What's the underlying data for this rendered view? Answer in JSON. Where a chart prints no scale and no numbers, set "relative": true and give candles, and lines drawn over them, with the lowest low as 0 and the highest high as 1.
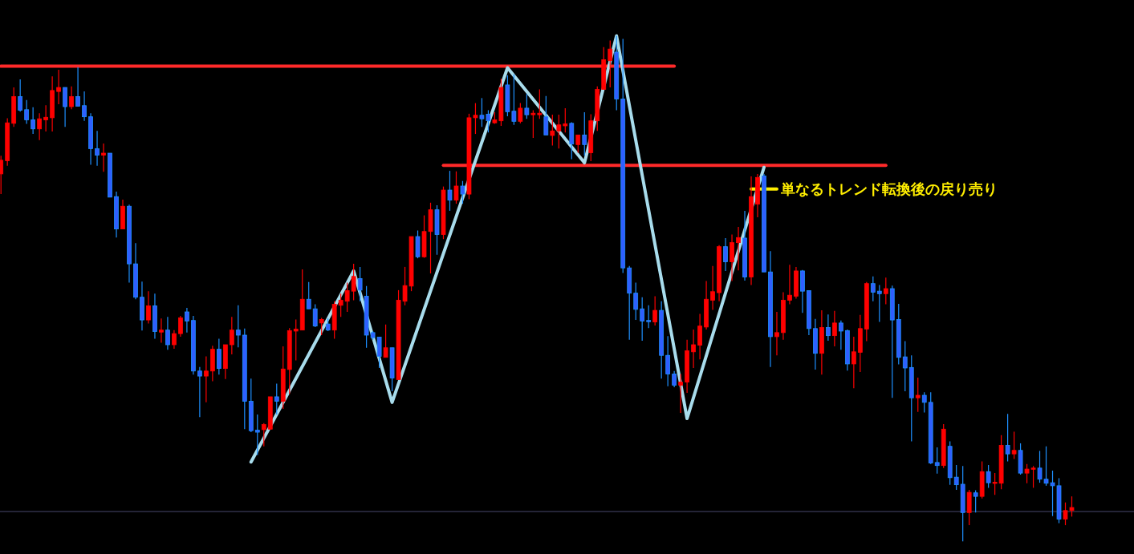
{
  "chart_data": {
    "type": "candlestick",
    "relative": true,
    "grid": false,
    "marker": "none",
    "categories": [
      null,
      null,
      null,
      null,
      null,
      null,
      null,
      null,
      null,
      null,
      null,
      null,
      null,
      null,
      null,
      null,
      null,
      null,
      null,
      null,
      null,
      null,
      null,
      null,
      null,
      null,
      null,
      null,
      null,
      null,
      null,
      null,
      null,
      null,
      null,
      null,
      null,
      null,
      null,
      null,
      null,
      null,
      null,
      null,
      null,
      null,
      null,
      null,
      null,
      null,
      null,
      null,
      null,
      null,
      null,
      null,
      null,
      null,
      null,
      null,
      null,
      null,
      null,
      null,
      null,
      null,
      null,
      null,
      null,
      null,
      null,
      null,
      null,
      null,
      null,
      null,
      null,
      null,
      null,
      null,
      null,
      null,
      null,
      null,
      null,
      null,
      null,
      null,
      null,
      null,
      null,
      null,
      null,
      null,
      null,
      null,
      null,
      null,
      null,
      null,
      null,
      null,
      null,
      null,
      null,
      null,
      null,
      null,
      null,
      null,
      null,
      null,
      null,
      null,
      null,
      null,
      null,
      null,
      null,
      null,
      null,
      null,
      null,
      null,
      null,
      null,
      null,
      null,
      null,
      null,
      null,
      null,
      null,
      null,
      null,
      null,
      null,
      null,
      null,
      null,
      null,
      null,
      null,
      null,
      null,
      null,
      null,
      null,
      null,
      null,
      null,
      null,
      null,
      null,
      null,
      null,
      null,
      null,
      null,
      null,
      null,
      null,
      null,
      null,
      null,
      null,
      null,
      null
    ],
    "ohlc": [
      [
        0.727,
        0.763,
        0.687,
        0.754
      ],
      [
        0.753,
        0.837,
        0.743,
        0.828
      ],
      [
        0.827,
        0.898,
        0.82,
        0.88
      ],
      [
        0.88,
        0.914,
        0.85,
        0.853
      ],
      [
        0.854,
        0.873,
        0.826,
        0.834
      ],
      [
        0.834,
        0.859,
        0.806,
        0.816
      ],
      [
        0.816,
        0.847,
        0.794,
        0.836
      ],
      [
        0.834,
        0.863,
        0.811,
        0.839
      ],
      [
        0.838,
        0.92,
        0.811,
        0.892
      ],
      [
        0.89,
        0.933,
        0.865,
        0.898
      ],
      [
        0.898,
        0.898,
        0.82,
        0.86
      ],
      [
        0.86,
        0.9,
        0.855,
        0.88
      ],
      [
        0.88,
        0.938,
        0.861,
        0.861
      ],
      [
        0.862,
        0.89,
        0.832,
        0.84
      ],
      [
        0.84,
        0.847,
        0.745,
        0.777
      ],
      [
        0.777,
        0.812,
        0.743,
        0.764
      ],
      [
        0.764,
        0.787,
        0.731,
        0.768
      ],
      [
        0.768,
        0.768,
        0.681,
        0.681
      ],
      [
        0.682,
        0.692,
        0.601,
        0.618
      ],
      [
        0.618,
        0.676,
        0.618,
        0.663
      ],
      [
        0.663,
        0.666,
        0.512,
        0.549
      ],
      [
        0.549,
        0.59,
        0.479,
        0.483
      ],
      [
        0.483,
        0.514,
        0.417,
        0.438
      ],
      [
        0.438,
        0.495,
        0.431,
        0.466
      ],
      [
        0.466,
        0.49,
        0.401,
        0.415
      ],
      [
        0.414,
        0.441,
        0.393,
        0.418
      ],
      [
        0.418,
        0.444,
        0.379,
        0.389
      ],
      [
        0.389,
        0.418,
        0.381,
        0.411
      ],
      [
        0.411,
        0.446,
        0.405,
        0.442
      ],
      [
        0.454,
        0.462,
        0.413,
        0.436
      ],
      [
        0.437,
        0.446,
        0.33,
        0.337
      ],
      [
        0.337,
        0.345,
        0.246,
        0.327
      ],
      [
        0.327,
        0.366,
        0.275,
        0.337
      ],
      [
        0.337,
        0.387,
        0.317,
        0.38
      ],
      [
        0.38,
        0.401,
        0.33,
        0.342
      ],
      [
        0.342,
        0.389,
        0.321,
        0.389
      ],
      [
        0.389,
        0.444,
        0.37,
        0.418
      ],
      [
        0.418,
        0.467,
        0.384,
        0.408
      ],
      [
        0.408,
        0.421,
        0.222,
        0.277
      ],
      [
        0.277,
        0.322,
        0.216,
        0.219
      ],
      [
        0.22,
        0.251,
        0.171,
        0.216
      ],
      [
        0.221,
        0.234,
        0.188,
        0.231
      ],
      [
        0.222,
        0.286,
        0.221,
        0.286
      ],
      [
        0.286,
        0.312,
        0.251,
        0.277
      ],
      [
        0.277,
        0.386,
        0.262,
        0.341
      ],
      [
        0.34,
        0.422,
        0.292,
        0.417
      ],
      [
        0.416,
        0.439,
        0.358,
        0.42
      ],
      [
        0.418,
        0.538,
        0.418,
        0.479
      ],
      [
        0.479,
        0.513,
        0.46,
        0.46
      ],
      [
        0.46,
        0.469,
        0.424,
        0.426
      ],
      [
        0.432,
        0.442,
        0.408,
        0.439
      ],
      [
        0.43,
        0.441,
        0.416,
        0.418
      ],
      [
        0.418,
        0.475,
        0.401,
        0.469
      ],
      [
        0.467,
        0.49,
        0.444,
        0.477
      ],
      [
        0.475,
        0.512,
        0.454,
        0.496
      ],
      [
        0.495,
        0.549,
        0.477,
        0.524
      ],
      [
        0.52,
        0.543,
        0.475,
        0.497
      ],
      [
        0.485,
        0.505,
        0.383,
        0.408
      ],
      [
        0.413,
        0.416,
        0.399,
        0.403
      ],
      [
        0.404,
        0.404,
        0.343,
        0.366
      ],
      [
        0.364,
        0.429,
        0.364,
        0.383
      ],
      [
        0.383,
        0.383,
        0.297,
        0.323
      ],
      [
        0.32,
        0.497,
        0.32,
        0.477
      ],
      [
        0.475,
        0.543,
        0.467,
        0.506
      ],
      [
        0.505,
        0.603,
        0.495,
        0.603
      ],
      [
        0.603,
        0.615,
        0.56,
        0.563
      ],
      [
        0.563,
        0.645,
        0.561,
        0.613
      ],
      [
        0.613,
        0.67,
        0.53,
        0.656
      ],
      [
        0.656,
        0.665,
        0.567,
        0.607
      ],
      [
        0.607,
        0.702,
        0.598,
        0.695
      ],
      [
        0.695,
        0.733,
        0.654,
        0.675
      ],
      [
        0.675,
        0.732,
        0.668,
        0.703
      ],
      [
        0.703,
        0.713,
        0.668,
        0.687
      ],
      [
        0.687,
        0.846,
        0.677,
        0.838
      ],
      [
        0.838,
        0.867,
        0.806,
        0.843
      ],
      [
        0.843,
        0.877,
        0.82,
        0.836
      ],
      [
        0.845,
        0.853,
        0.809,
        0.832
      ],
      [
        0.828,
        0.849,
        0.826,
        0.834
      ],
      [
        0.832,
        0.915,
        0.822,
        0.898
      ],
      [
        0.903,
        0.922,
        0.841,
        0.85
      ],
      [
        0.851,
        0.924,
        0.824,
        0.831
      ],
      [
        0.831,
        0.867,
        0.827,
        0.857
      ],
      [
        0.857,
        0.885,
        0.836,
        0.844
      ],
      [
        0.844,
        0.853,
        0.798,
        0.847
      ],
      [
        0.844,
        0.894,
        0.836,
        0.847
      ],
      [
        0.84,
        0.881,
        0.804,
        0.804
      ],
      [
        0.803,
        0.844,
        0.783,
        0.812
      ],
      [
        0.812,
        0.844,
        0.777,
        0.824
      ],
      [
        0.822,
        0.857,
        0.809,
        0.826
      ],
      [
        0.827,
        0.829,
        0.756,
        0.786
      ],
      [
        0.785,
        0.804,
        0.769,
        0.804
      ],
      [
        0.804,
        0.849,
        0.763,
        0.785
      ],
      [
        0.769,
        0.845,
        0.752,
        0.832
      ],
      [
        0.832,
        0.9,
        0.812,
        0.894
      ],
      [
        0.894,
        0.978,
        0.894,
        0.953
      ],
      [
        0.951,
        0.991,
        0.898,
        0.974
      ],
      [
        0.968,
        1.0,
        0.853,
        0.875
      ],
      [
        0.875,
        0.994,
        0.531,
        0.541
      ],
      [
        0.541,
        0.545,
        0.399,
        0.491
      ],
      [
        0.491,
        0.512,
        0.438,
        0.459
      ],
      [
        0.46,
        0.483,
        0.397,
        0.436
      ],
      [
        0.437,
        0.467,
        0.422,
        0.436
      ],
      [
        0.434,
        0.485,
        0.427,
        0.457
      ],
      [
        0.457,
        0.475,
        0.322,
        0.368
      ],
      [
        0.368,
        0.406,
        0.307,
        0.331
      ],
      [
        0.331,
        0.337,
        0.305,
        0.309
      ],
      [
        0.309,
        0.331,
        0.254,
        0.315
      ],
      [
        0.315,
        0.399,
        0.294,
        0.377
      ],
      [
        0.375,
        0.419,
        0.343,
        0.389
      ],
      [
        0.388,
        0.45,
        0.36,
        0.426
      ],
      [
        0.424,
        0.515,
        0.419,
        0.479
      ],
      [
        0.477,
        0.545,
        0.458,
        0.494
      ],
      [
        0.492,
        0.586,
        0.475,
        0.583
      ],
      [
        0.583,
        0.6,
        0.535,
        0.553
      ],
      [
        0.553,
        0.607,
        0.515,
        0.591
      ],
      [
        0.591,
        0.622,
        0.536,
        0.601
      ],
      [
        0.6,
        0.654,
        0.516,
        0.523
      ],
      [
        0.523,
        0.722,
        0.507,
        0.682
      ],
      [
        0.667,
        0.727,
        0.641,
        0.72
      ],
      [
        0.723,
        0.727,
        0.533,
        0.533
      ],
      [
        0.533,
        0.574,
        0.345,
        0.405
      ],
      [
        0.405,
        0.454,
        0.368,
        0.413
      ],
      [
        0.413,
        0.493,
        0.399,
        0.477
      ],
      [
        0.477,
        0.547,
        0.469,
        0.487
      ],
      [
        0.485,
        0.543,
        0.48,
        0.535
      ],
      [
        0.535,
        0.537,
        0.452,
        0.495
      ],
      [
        0.496,
        0.496,
        0.408,
        0.421
      ],
      [
        0.421,
        0.44,
        0.34,
        0.372
      ],
      [
        0.372,
        0.457,
        0.33,
        0.423
      ],
      [
        0.423,
        0.449,
        0.397,
        0.407
      ],
      [
        0.407,
        0.456,
        0.386,
        0.432
      ],
      [
        0.432,
        0.437,
        0.379,
        0.416
      ],
      [
        0.417,
        0.419,
        0.338,
        0.351
      ],
      [
        0.351,
        0.405,
        0.303,
        0.375
      ],
      [
        0.374,
        0.448,
        0.335,
        0.421
      ],
      [
        0.42,
        0.513,
        0.396,
        0.51
      ],
      [
        0.51,
        0.524,
        0.475,
        0.493
      ],
      [
        0.495,
        0.507,
        0.434,
        0.49
      ],
      [
        0.49,
        0.522,
        0.469,
        0.5
      ],
      [
        0.5,
        0.506,
        0.284,
        0.438
      ],
      [
        0.439,
        0.47,
        0.35,
        0.364
      ],
      [
        0.365,
        0.396,
        0.297,
        0.343
      ],
      [
        0.344,
        0.368,
        0.198,
        0.284
      ],
      [
        0.284,
        0.324,
        0.256,
        0.289
      ],
      [
        0.289,
        0.295,
        0.255,
        0.275
      ],
      [
        0.275,
        0.295,
        0.153,
        0.155
      ],
      [
        0.156,
        0.186,
        0.134,
        0.15
      ],
      [
        0.15,
        0.232,
        0.145,
        0.222
      ],
      [
        0.188,
        0.198,
        0.112,
        0.126
      ],
      [
        0.127,
        0.151,
        0.102,
        0.112
      ],
      [
        0.113,
        0.149,
        0.0,
        0.057
      ],
      [
        0.057,
        0.102,
        0.032,
        0.097
      ],
      [
        0.096,
        0.101,
        0.057,
        0.089
      ],
      [
        0.089,
        0.158,
        0.085,
        0.138
      ],
      [
        0.138,
        0.151,
        0.106,
        0.116
      ],
      [
        0.115,
        0.135,
        0.092,
        0.117
      ],
      [
        0.115,
        0.21,
        0.103,
        0.19
      ],
      [
        0.19,
        0.252,
        0.158,
        0.173
      ],
      [
        0.173,
        0.217,
        0.163,
        0.18
      ],
      [
        0.18,
        0.194,
        0.132,
        0.135
      ],
      [
        0.135,
        0.153,
        0.115,
        0.143
      ],
      [
        0.143,
        0.149,
        0.106,
        0.145
      ],
      [
        0.145,
        0.179,
        0.116,
        0.123
      ],
      [
        0.123,
        0.188,
        0.11,
        0.115
      ],
      [
        0.116,
        0.14,
        0.05,
        0.11
      ],
      [
        0.11,
        0.125,
        0.036,
        0.044
      ],
      [
        0.044,
        0.077,
        0.032,
        0.061
      ],
      [
        0.061,
        0.089,
        0.049,
        0.067
      ]
    ],
    "colors": [
      "#ff0000",
      "#ff0000",
      "#ff0000",
      "#2f5fff",
      "#2f5fff",
      "#2f5fff",
      "#ff0000",
      "#ff0000",
      "#ff0000",
      "#ff0000",
      "#2f5fff",
      "#ff0000",
      "#2f5fff",
      "#2f5fff",
      "#2f5fff",
      "#2f5fff",
      "#ff0000",
      "#2f5fff",
      "#2f5fff",
      "#ff0000",
      "#2f5fff",
      "#2f5fff",
      "#2f5fff",
      "#ff0000",
      "#2f5fff",
      "#ff0000",
      "#2f5fff",
      "#ff0000",
      "#ff0000",
      "#2f5fff",
      "#2f5fff",
      "#2f5fff",
      "#ff0000",
      "#ff0000",
      "#2f5fff",
      "#ff0000",
      "#ff0000",
      "#2f5fff",
      "#2f5fff",
      "#2f5fff",
      "#2f5fff",
      "#ff0000",
      "#ff0000",
      "#2f5fff",
      "#ff0000",
      "#ff0000",
      "#ff0000",
      "#ff0000",
      "#2f5fff",
      "#2f5fff",
      "#ff0000",
      "#2f5fff",
      "#ff0000",
      "#ff0000",
      "#ff0000",
      "#ff0000",
      "#2f5fff",
      "#2f5fff",
      "#2f5fff",
      "#2f5fff",
      "#ff0000",
      "#2f5fff",
      "#ff0000",
      "#ff0000",
      "#ff0000",
      "#2f5fff",
      "#ff0000",
      "#ff0000",
      "#2f5fff",
      "#ff0000",
      "#2f5fff",
      "#ff0000",
      "#2f5fff",
      "#ff0000",
      "#ff0000",
      "#2f5fff",
      "#2f5fff",
      "#ff0000",
      "#ff0000",
      "#2f5fff",
      "#2f5fff",
      "#ff0000",
      "#2f5fff",
      "#ff0000",
      "#ff0000",
      "#2f5fff",
      "#ff0000",
      "#ff0000",
      "#ff0000",
      "#2f5fff",
      "#ff0000",
      "#2f5fff",
      "#ff0000",
      "#ff0000",
      "#ff0000",
      "#ff0000",
      "#2f5fff",
      "#2f5fff",
      "#2f5fff",
      "#2f5fff",
      "#2f5fff",
      "#2f5fff",
      "#ff0000",
      "#2f5fff",
      "#2f5fff",
      "#2f5fff",
      "#ff0000",
      "#ff0000",
      "#ff0000",
      "#ff0000",
      "#ff0000",
      "#ff0000",
      "#ff0000",
      "#2f5fff",
      "#ff0000",
      "#ff0000",
      "#2f5fff",
      "#ff0000",
      "#ff0000",
      "#2f5fff",
      "#2f5fff",
      "#ff0000",
      "#ff0000",
      "#ff0000",
      "#ff0000",
      "#2f5fff",
      "#2f5fff",
      "#2f5fff",
      "#ff0000",
      "#2f5fff",
      "#ff0000",
      "#2f5fff",
      "#2f5fff",
      "#ff0000",
      "#ff0000",
      "#ff0000",
      "#2f5fff",
      "#2f5fff",
      "#ff0000",
      "#2f5fff",
      "#2f5fff",
      "#2f5fff",
      "#2f5fff",
      "#ff0000",
      "#2f5fff",
      "#2f5fff",
      "#2f5fff",
      "#ff0000",
      "#2f5fff",
      "#2f5fff",
      "#2f5fff",
      "#ff0000",
      "#2f5fff",
      "#ff0000",
      "#2f5fff",
      "#ff0000",
      "#ff0000",
      "#2f5fff",
      "#ff0000",
      "#2f5fff",
      "#ff0000",
      "#ff0000",
      "#2f5fff",
      "#2f5fff",
      "#2f5fff",
      "#2f5fff",
      "#ff0000",
      "#ff0000"
    ],
    "series": [
      {
        "type": "line",
        "color": "#ff2a2a",
        "values": [
          0.94,
          null,
          null,
          null,
          null,
          null,
          null,
          null,
          null,
          null,
          null,
          null,
          null,
          null,
          null,
          null,
          null,
          null,
          null,
          null,
          null,
          null,
          null,
          null,
          null,
          null,
          null,
          null,
          null,
          null,
          null,
          null,
          null,
          null,
          null,
          null,
          null,
          null,
          null,
          null,
          null,
          null,
          null,
          null,
          null,
          null,
          null,
          null,
          null,
          null,
          null,
          null,
          null,
          null,
          null,
          null,
          null,
          null,
          null,
          null,
          null,
          null,
          null,
          null,
          null,
          null,
          null,
          null,
          null,
          null,
          null,
          null,
          null,
          null,
          null,
          null,
          null,
          null,
          null,
          null,
          null,
          null,
          null,
          null,
          null,
          null,
          null,
          null,
          null,
          null,
          null,
          null,
          null,
          null,
          null,
          null,
          null,
          null,
          null,
          null,
          null,
          null,
          null,
          null,
          null,
          0.94,
          null,
          null,
          null,
          null,
          null,
          null,
          null,
          null,
          null,
          null,
          null,
          null,
          null,
          null,
          null,
          null,
          null,
          null,
          null,
          null,
          null,
          null,
          null,
          null,
          null,
          null,
          null,
          null,
          null,
          null,
          null,
          null,
          null,
          null,
          null,
          null,
          null,
          null,
          null,
          null,
          null,
          null,
          null,
          null,
          null,
          null,
          null,
          null,
          null,
          null,
          null,
          null,
          null,
          null,
          null,
          null,
          null,
          null,
          null,
          null,
          null,
          null
        ]
      },
      {
        "type": "line",
        "color": "#ff2a2a",
        "values": [
          null,
          null,
          null,
          null,
          null,
          null,
          null,
          null,
          null,
          null,
          null,
          null,
          null,
          null,
          null,
          null,
          null,
          null,
          null,
          null,
          null,
          null,
          null,
          null,
          null,
          null,
          null,
          null,
          null,
          null,
          null,
          null,
          null,
          null,
          null,
          null,
          null,
          null,
          null,
          null,
          null,
          null,
          null,
          null,
          null,
          null,
          null,
          null,
          null,
          null,
          null,
          null,
          null,
          null,
          null,
          null,
          null,
          null,
          null,
          null,
          null,
          null,
          null,
          null,
          null,
          null,
          null,
          null,
          null,
          0.744,
          null,
          null,
          null,
          null,
          null,
          null,
          null,
          null,
          null,
          null,
          null,
          null,
          null,
          null,
          null,
          null,
          null,
          null,
          null,
          null,
          null,
          null,
          null,
          null,
          null,
          null,
          null,
          null,
          null,
          null,
          null,
          null,
          null,
          null,
          null,
          null,
          null,
          null,
          null,
          null,
          null,
          null,
          null,
          null,
          null,
          null,
          null,
          null,
          null,
          null,
          null,
          null,
          null,
          null,
          null,
          null,
          null,
          null,
          null,
          null,
          null,
          null,
          null,
          null,
          null,
          null,
          null,
          null,
          0.744,
          null,
          null,
          null,
          null,
          null,
          null,
          null,
          null,
          null,
          null,
          null,
          null,
          null,
          null,
          null,
          null,
          null,
          null,
          null,
          null,
          null,
          null,
          null,
          null,
          null,
          null,
          null,
          null,
          null
        ]
      },
      {
        "type": "line",
        "color": "#ffee00",
        "values": [
          null,
          null,
          null,
          null,
          null,
          null,
          null,
          null,
          null,
          null,
          null,
          null,
          null,
          null,
          null,
          null,
          null,
          null,
          null,
          null,
          null,
          null,
          null,
          null,
          null,
          null,
          null,
          null,
          null,
          null,
          null,
          null,
          null,
          null,
          null,
          null,
          null,
          null,
          null,
          null,
          null,
          null,
          null,
          null,
          null,
          null,
          null,
          null,
          null,
          null,
          null,
          null,
          null,
          null,
          null,
          null,
          null,
          null,
          null,
          null,
          null,
          null,
          null,
          null,
          null,
          null,
          null,
          null,
          null,
          null,
          null,
          null,
          null,
          null,
          null,
          null,
          null,
          null,
          null,
          null,
          null,
          null,
          null,
          null,
          null,
          null,
          null,
          null,
          null,
          null,
          null,
          null,
          null,
          null,
          null,
          null,
          null,
          null,
          null,
          null,
          null,
          null,
          null,
          null,
          null,
          null,
          null,
          null,
          null,
          null,
          null,
          null,
          null,
          null,
          null,
          null,
          null,
          0.697,
          null,
          null,
          null,
          0.697,
          null,
          null,
          null,
          null,
          null,
          null,
          null,
          null,
          null,
          null,
          null,
          null,
          null,
          null,
          null,
          null,
          null,
          null,
          null,
          null,
          null,
          null,
          null,
          null,
          null,
          null,
          null,
          null,
          null,
          null,
          null,
          null,
          null,
          null,
          null,
          null,
          null,
          null,
          null,
          null,
          null,
          null,
          null,
          null,
          null,
          null
        ]
      },
      {
        "type": "line",
        "color": "#a8dcec",
        "values": [
          null,
          null,
          null,
          null,
          null,
          null,
          null,
          null,
          null,
          null,
          null,
          null,
          null,
          null,
          null,
          null,
          null,
          null,
          null,
          null,
          null,
          null,
          null,
          null,
          null,
          null,
          null,
          null,
          null,
          null,
          null,
          null,
          null,
          null,
          null,
          null,
          null,
          null,
          null,
          0.157,
          null,
          null,
          null,
          null,
          null,
          null,
          null,
          null,
          null,
          null,
          null,
          null,
          null,
          null,
          null,
          0.535,
          null,
          null,
          null,
          null,
          null,
          0.275,
          null,
          null,
          null,
          null,
          null,
          null,
          null,
          null,
          null,
          null,
          null,
          null,
          null,
          null,
          null,
          null,
          null,
          0.937,
          null,
          null,
          null,
          null,
          null,
          null,
          null,
          null,
          null,
          null,
          null,
          0.749,
          null,
          null,
          null,
          null,
          1.0,
          null,
          null,
          null,
          null,
          null,
          null,
          null,
          null,
          null,
          null,
          0.243,
          null,
          null,
          null,
          null,
          null,
          null,
          null,
          null,
          null,
          null,
          null,
          0.74,
          null,
          null,
          null,
          null,
          null,
          null,
          null,
          null,
          null,
          null,
          null,
          null,
          null,
          null,
          null,
          null,
          null,
          null,
          null,
          null,
          null,
          null,
          null,
          null,
          null,
          null,
          null,
          null,
          null,
          null,
          null,
          null,
          null,
          null,
          null,
          null,
          null,
          null,
          null,
          null,
          null,
          null,
          null,
          null,
          null,
          null,
          null,
          null
        ]
      }
    ],
    "ref_lines": [
      {
        "axis": "y",
        "value": 0.059,
        "color": "#4a4a70"
      }
    ],
    "annotations": [
      "単なるトレンド転換後の戻り売り"
    ]
  }
}
